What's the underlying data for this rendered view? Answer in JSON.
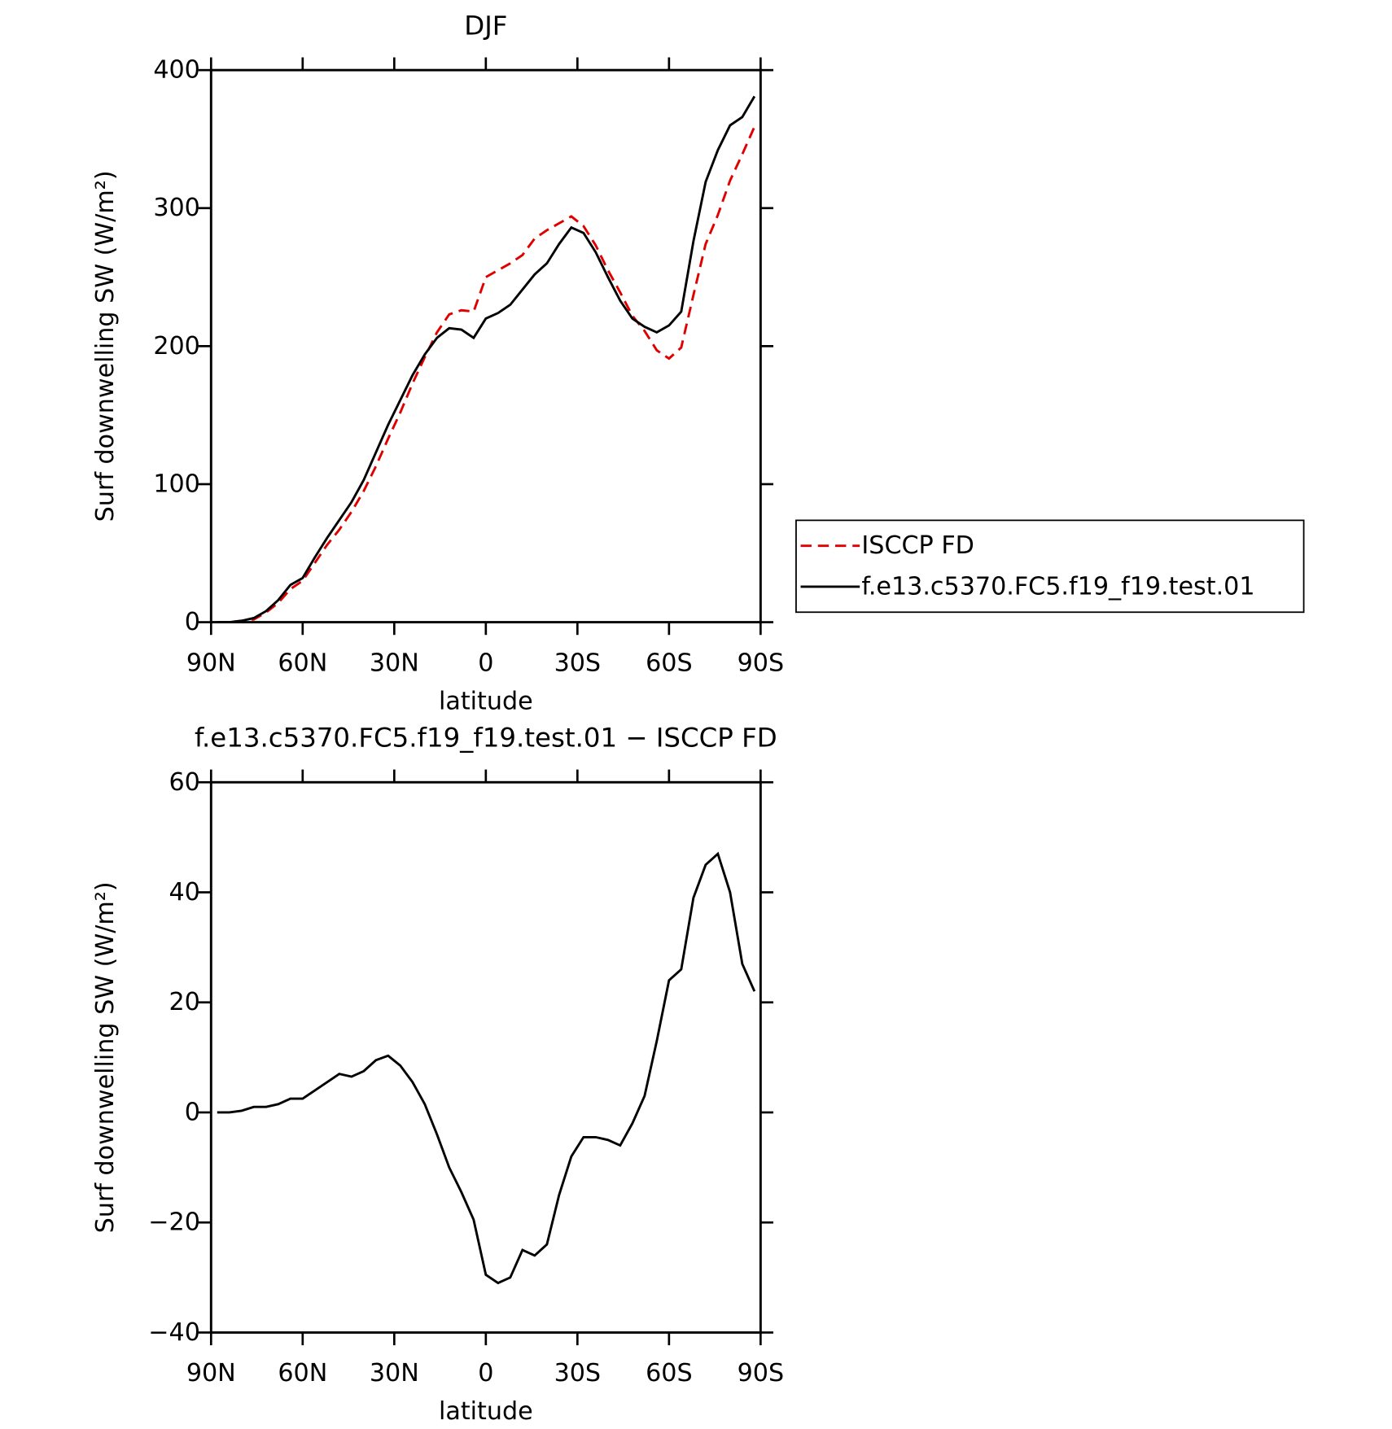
{
  "chart_data": [
    {
      "type": "line",
      "title": "DJF",
      "xlabel": "latitude",
      "ylabel": "Surf downwelling SW (W/m²)",
      "x": [
        88,
        84,
        80,
        76,
        72,
        68,
        64,
        60,
        56,
        52,
        48,
        44,
        40,
        36,
        32,
        28,
        24,
        20,
        16,
        12,
        8,
        4,
        0,
        -4,
        -8,
        -12,
        -16,
        -20,
        -24,
        -28,
        -32,
        -36,
        -40,
        -44,
        -48,
        -52,
        -56,
        -60,
        -64,
        -68,
        -72,
        -76,
        -80,
        -84,
        -88
      ],
      "series": [
        {
          "name": "ISCCP FD",
          "color": "#e00000",
          "linestyle": "dashed",
          "values": [
            0,
            0,
            1,
            2,
            7,
            14,
            24,
            30,
            43,
            56,
            67,
            80,
            95,
            113,
            133,
            152,
            173,
            192,
            210,
            223,
            226,
            225,
            250,
            255,
            260,
            266,
            278,
            284,
            289,
            294,
            287,
            273,
            255,
            239,
            222,
            211,
            197,
            191,
            199,
            237,
            274,
            295,
            320,
            339,
            359
          ]
        },
        {
          "name": "f.e13.c5370.FC5.f19_f19.test.01",
          "color": "#000000",
          "linestyle": "solid",
          "values": [
            0,
            0,
            1,
            3,
            8,
            16,
            27,
            32,
            47,
            61,
            74,
            87,
            103,
            123,
            143,
            161,
            179,
            194,
            206,
            213,
            212,
            206,
            220,
            224,
            230,
            241,
            252,
            260,
            274,
            286,
            282,
            268,
            250,
            233,
            220,
            214,
            210,
            215,
            225,
            276,
            319,
            342,
            360,
            366,
            381
          ]
        }
      ],
      "xlim": [
        90,
        -90
      ],
      "xticks": [
        {
          "value": 90,
          "label": "90N"
        },
        {
          "value": 60,
          "label": "60N"
        },
        {
          "value": 30,
          "label": "30N"
        },
        0,
        {
          "value": -30,
          "label": "30S"
        },
        {
          "value": -60,
          "label": "60S"
        },
        {
          "value": -90,
          "label": "90S"
        }
      ],
      "ylim": [
        0,
        400
      ],
      "yticks": [
        0,
        100,
        200,
        300,
        400
      ],
      "legend": "right"
    },
    {
      "type": "line",
      "title": "f.e13.c5370.FC5.f19_f19.test.01 − ISCCP FD",
      "xlabel": "latitude",
      "ylabel": "Surf downwelling SW (W/m²)",
      "x": [
        88,
        84,
        80,
        76,
        72,
        68,
        64,
        60,
        56,
        52,
        48,
        44,
        40,
        36,
        32,
        28,
        24,
        20,
        16,
        12,
        8,
        4,
        0,
        -4,
        -8,
        -12,
        -16,
        -20,
        -24,
        -28,
        -32,
        -36,
        -40,
        -44,
        -48,
        -52,
        -56,
        -60,
        -64,
        -68,
        -72,
        -76,
        -80,
        -84,
        -88
      ],
      "series": [
        {
          "color": "#000000",
          "linestyle": "solid",
          "values": [
            0,
            0,
            0.3,
            1,
            1,
            1.5,
            2.5,
            2.5,
            4,
            5.5,
            7,
            6.5,
            7.5,
            9.5,
            10.3,
            8.5,
            5.5,
            1.5,
            -4,
            -10,
            -14.5,
            -19.5,
            -29.5,
            -31,
            -30,
            -25,
            -26,
            -24,
            -15,
            -8,
            -4.5,
            -4.5,
            -5,
            -6,
            -2,
            3,
            13,
            24,
            26,
            39,
            45,
            47,
            40,
            27,
            22
          ]
        }
      ],
      "xlim": [
        90,
        -90
      ],
      "xticks": [
        {
          "value": 90,
          "label": "90N"
        },
        {
          "value": 60,
          "label": "60N"
        },
        {
          "value": 30,
          "label": "30N"
        },
        0,
        {
          "value": -30,
          "label": "30S"
        },
        {
          "value": -60,
          "label": "60S"
        },
        {
          "value": -90,
          "label": "90S"
        }
      ],
      "ylim": [
        -40,
        60
      ],
      "yticks": [
        {
          "value": -40,
          "label": "−40"
        },
        {
          "value": -20,
          "label": "−20"
        },
        0,
        20,
        40,
        60
      ]
    }
  ]
}
